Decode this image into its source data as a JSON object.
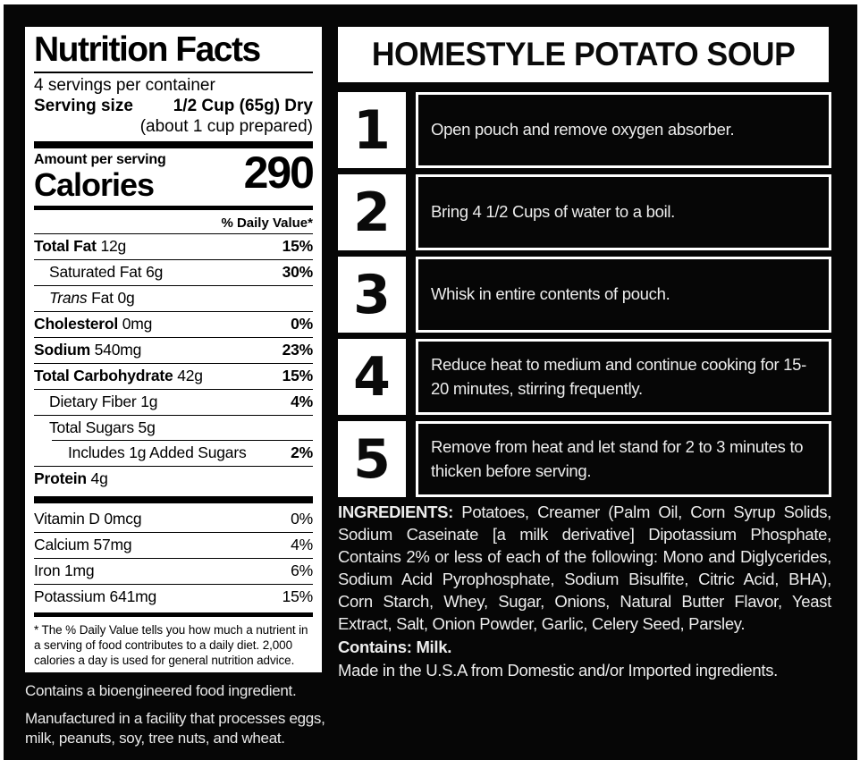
{
  "nutrition_panel": {
    "title": "Nutrition Facts",
    "servings_per_container": "4 servings per container",
    "serving_size_label": "Serving size",
    "serving_size_value": "1/2 Cup (65g) Dry",
    "serving_size_note": "(about 1 cup prepared)",
    "amount_per_serving": "Amount per serving",
    "calories_label": "Calories",
    "calories_value": "290",
    "daily_value_header": "% Daily Value*",
    "nutrient_rows": [
      {
        "bold": "Total Fat",
        "rest": " 12g",
        "dv": "15%",
        "indent": 0
      },
      {
        "rest": "Saturated Fat 6g",
        "dv": "30%",
        "indent": 1
      },
      {
        "italic": "Trans",
        "rest": " Fat 0g",
        "dv": "",
        "indent": 1
      },
      {
        "bold": "Cholesterol",
        "rest": " 0mg",
        "dv": "0%",
        "indent": 0
      },
      {
        "bold": "Sodium",
        "rest": " 540mg",
        "dv": "23%",
        "indent": 0
      },
      {
        "bold": "Total Carbohydrate",
        "rest": " 42g",
        "dv": "15%",
        "indent": 0
      },
      {
        "rest": "Dietary Fiber 1g",
        "dv": "4%",
        "indent": 1
      },
      {
        "rest": "Total Sugars 5g",
        "dv": "",
        "indent": 1
      },
      {
        "rest": "Includes 1g Added Sugars",
        "dv": "2%",
        "indent": 2,
        "sep": "indent"
      },
      {
        "bold": "Protein",
        "rest": " 4g",
        "dv": "",
        "indent": 0
      }
    ],
    "vitamin_rows": [
      {
        "rest": "Vitamin D 0mcg",
        "dv": "0%"
      },
      {
        "rest": "Calcium 57mg",
        "dv": "4%"
      },
      {
        "rest": "Iron 1mg",
        "dv": "6%"
      },
      {
        "rest": "Potassium 641mg",
        "dv": "15%"
      }
    ],
    "footnote": "* The % Daily Value tells you how much a nutrient in a serving of food contributes to a daily diet. 2,000 calories a day is used for general nutrition advice."
  },
  "left_notes": [
    "Contains a bioengineered food ingredient.",
    "Manufactured in a facility that processes eggs, milk, peanuts, soy, tree nuts, and wheat."
  ],
  "product": {
    "title": "HOMESTYLE POTATO SOUP"
  },
  "steps": [
    {
      "num": "1",
      "text": "Open pouch and remove oxygen absorber."
    },
    {
      "num": "2",
      "text": "Bring 4 1/2 Cups of water to a boil."
    },
    {
      "num": "3",
      "text": "Whisk in entire contents of pouch."
    },
    {
      "num": "4",
      "text": "Reduce heat to medium and continue cooking for 15-20 minutes, stirring frequently."
    },
    {
      "num": "5",
      "text": "Remove from heat and let stand for 2 to 3 minutes to thicken before serving."
    }
  ],
  "ingredients": {
    "label": "INGREDIENTS:",
    "body": " Potatoes, Creamer (Palm Oil, Corn Syrup Solids, Sodium Caseinate [a milk derivative] Dipotassium Phosphate, Contains 2% or less of each of the following: Mono and Diglycerides, Sodium Acid Pyrophosphate, Sodium Bisulfite, Citric Acid, BHA), Corn Starch, Whey, Sugar, Onions, Natural Butter Flavor, Yeast Extract, Salt, Onion Powder, Garlic, Celery Seed, Parsley.",
    "contains": "Contains: Milk.",
    "origin": "Made in the U.S.A from Domestic and/or Imported ingredients."
  },
  "colors": {
    "background": "#060606",
    "panel": "#ffffff",
    "text_on_dark": "#ededed",
    "text_on_light": "#000000"
  }
}
